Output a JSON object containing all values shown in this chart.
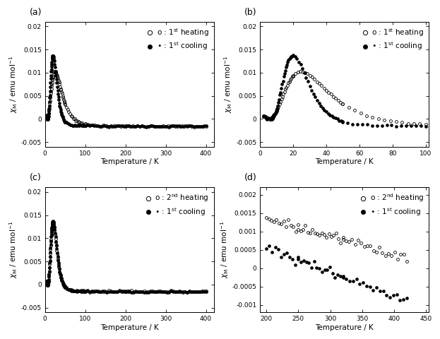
{
  "ylabel": "$\\chi_{\\rm M}$ / emu mol$^{-1}$",
  "xlabel": "Temperature / K",
  "panel_a": {
    "xlim": [
      0,
      420
    ],
    "ylim": [
      -0.006,
      0.021
    ],
    "yticks": [
      -0.005,
      0,
      0.005,
      0.01,
      0.015,
      0.02
    ],
    "xticks": [
      0,
      100,
      200,
      300,
      400
    ]
  },
  "panel_b": {
    "xlim": [
      0,
      102
    ],
    "ylim": [
      -0.006,
      0.021
    ],
    "yticks": [
      -0.005,
      0,
      0.005,
      0.01,
      0.015,
      0.02
    ],
    "xticks": [
      0,
      20,
      40,
      60,
      80,
      100
    ]
  },
  "panel_c": {
    "xlim": [
      0,
      420
    ],
    "ylim": [
      -0.006,
      0.021
    ],
    "yticks": [
      -0.005,
      0,
      0.005,
      0.01,
      0.015,
      0.02
    ],
    "xticks": [
      0,
      100,
      200,
      300,
      400
    ]
  },
  "panel_d": {
    "xlim": [
      190,
      455
    ],
    "ylim": [
      -0.0012,
      0.0022
    ],
    "yticks": [
      -0.001,
      -0.0005,
      0,
      0.0005,
      0.001,
      0.0015,
      0.002
    ],
    "xticks": [
      200,
      250,
      300,
      350,
      400,
      450
    ]
  }
}
